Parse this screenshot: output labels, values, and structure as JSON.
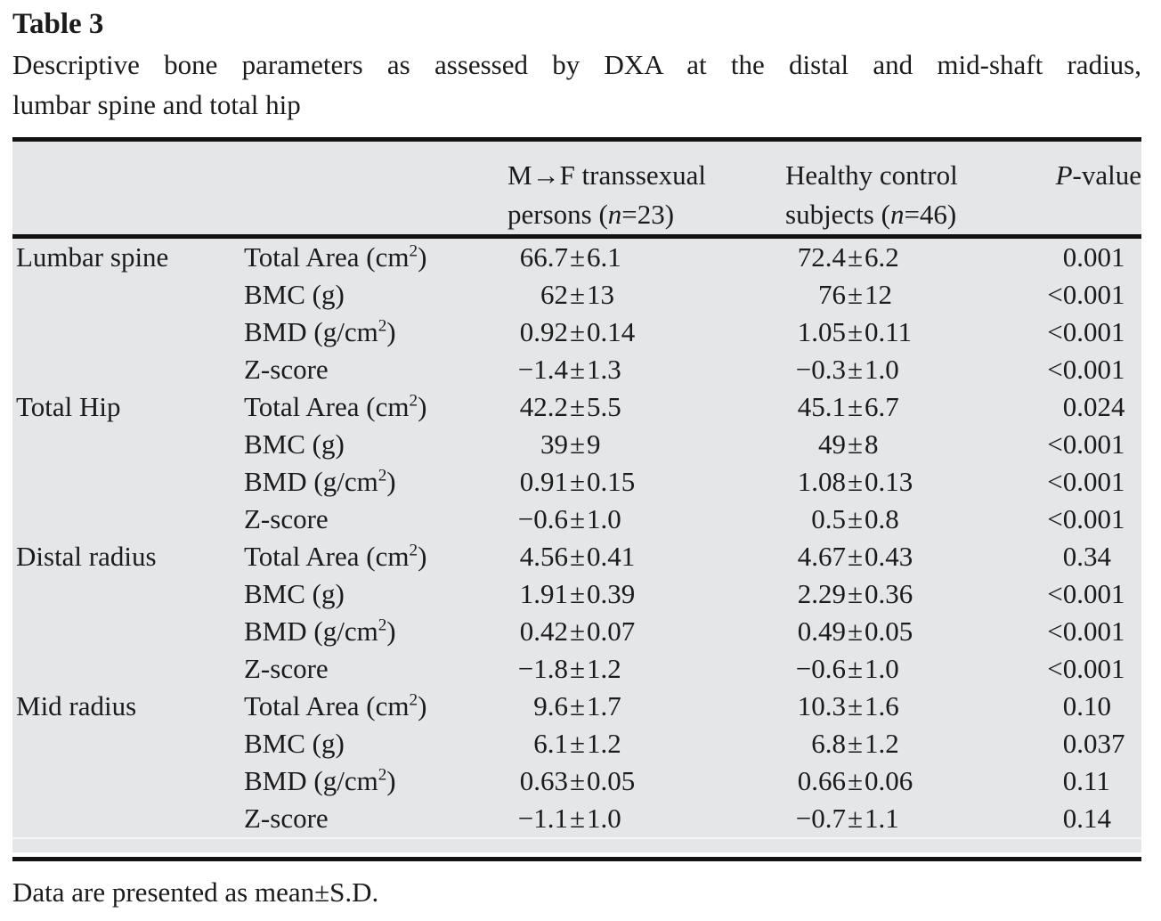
{
  "colors": {
    "table_background": "#e5e6e8",
    "rule": "#131313",
    "text": "#1b1b1b"
  },
  "title": "Table 3",
  "caption": {
    "line1": "Descriptive bone parameters as assessed by DXA at the distal and mid-shaft radius,",
    "line2": "lumbar spine and total hip"
  },
  "table": {
    "header": {
      "col_mtf": {
        "line1": "M→F transsexual",
        "line2_pre": "persons (",
        "line2_n": "n",
        "line2_post": "=23)"
      },
      "col_control": {
        "line1": "Healthy control",
        "line2_pre": "subjects (",
        "line2_n": "n",
        "line2_post": "=46)"
      },
      "col_p": {
        "italic": "P",
        "rest": "-value"
      }
    },
    "rows": [
      {
        "site": "Lumbar spine",
        "param": "Total Area (cm²)",
        "mtf": "66.7±6.1",
        "control": "72.4±6.2",
        "p": "0.001"
      },
      {
        "site": "",
        "param": "BMC (g)",
        "mtf": "62±13",
        "control": "76±12",
        "p": "<0.001"
      },
      {
        "site": "",
        "param": "BMD (g/cm²)",
        "mtf": "0.92±0.14",
        "control": "1.05±0.11",
        "p": "<0.001"
      },
      {
        "site": "",
        "param": "Z-score",
        "mtf": "−1.4±1.3",
        "control": "−0.3±1.0",
        "p": "<0.001"
      },
      {
        "site": "Total Hip",
        "param": "Total Area (cm²)",
        "mtf": "42.2±5.5",
        "control": "45.1±6.7",
        "p": "0.024"
      },
      {
        "site": "",
        "param": "BMC (g)",
        "mtf": "39±9",
        "control": "49±8",
        "p": "<0.001"
      },
      {
        "site": "",
        "param": "BMD (g/cm²)",
        "mtf": "0.91±0.15",
        "control": "1.08±0.13",
        "p": "<0.001"
      },
      {
        "site": "",
        "param": "Z-score",
        "mtf": "−0.6±1.0",
        "control": "0.5±0.8",
        "p": "<0.001"
      },
      {
        "site": "Distal radius",
        "param": "Total Area (cm²)",
        "mtf": "4.56±0.41",
        "control": "4.67±0.43",
        "p": "0.34"
      },
      {
        "site": "",
        "param": "BMC (g)",
        "mtf": "1.91±0.39",
        "control": "2.29±0.36",
        "p": "<0.001"
      },
      {
        "site": "",
        "param": "BMD (g/cm²)",
        "mtf": "0.42±0.07",
        "control": "0.49±0.05",
        "p": "<0.001"
      },
      {
        "site": "",
        "param": "Z-score",
        "mtf": "−1.8±1.2",
        "control": "−0.6±1.0",
        "p": "<0.001"
      },
      {
        "site": "Mid radius",
        "param": "Total Area (cm²)",
        "mtf": "9.6±1.7",
        "control": "10.3±1.6",
        "p": "0.10"
      },
      {
        "site": "",
        "param": "BMC (g)",
        "mtf": "6.1±1.2",
        "control": "6.8±1.2",
        "p": "0.037"
      },
      {
        "site": "",
        "param": "BMD (g/cm²)",
        "mtf": "0.63±0.05",
        "control": "0.66±0.06",
        "p": "0.11"
      },
      {
        "site": "",
        "param": "Z-score",
        "mtf": "−1.1±1.0",
        "control": "−0.7±1.1",
        "p": "0.14"
      }
    ]
  },
  "footnote": "Data are presented as mean±S.D."
}
